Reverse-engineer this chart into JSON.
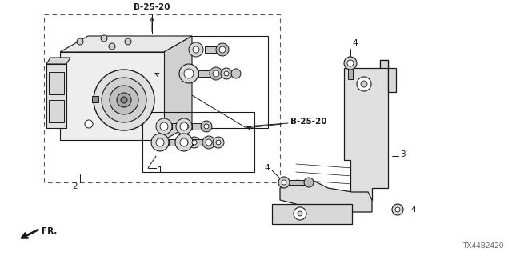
{
  "bg_color": "#ffffff",
  "line_color": "#1a1a1a",
  "dashed_color": "#555555",
  "title_diagram_id": "TX44B2420",
  "labels": {
    "b25_20_top": "B-25-20",
    "b25_20_right": "B-25-20",
    "num1": "1",
    "num2": "2",
    "num3": "3",
    "num4_top": "4",
    "num4_left": "4",
    "num4_bottom": "4",
    "fr": "FR."
  },
  "figsize": [
    6.4,
    3.2
  ],
  "dpi": 100
}
